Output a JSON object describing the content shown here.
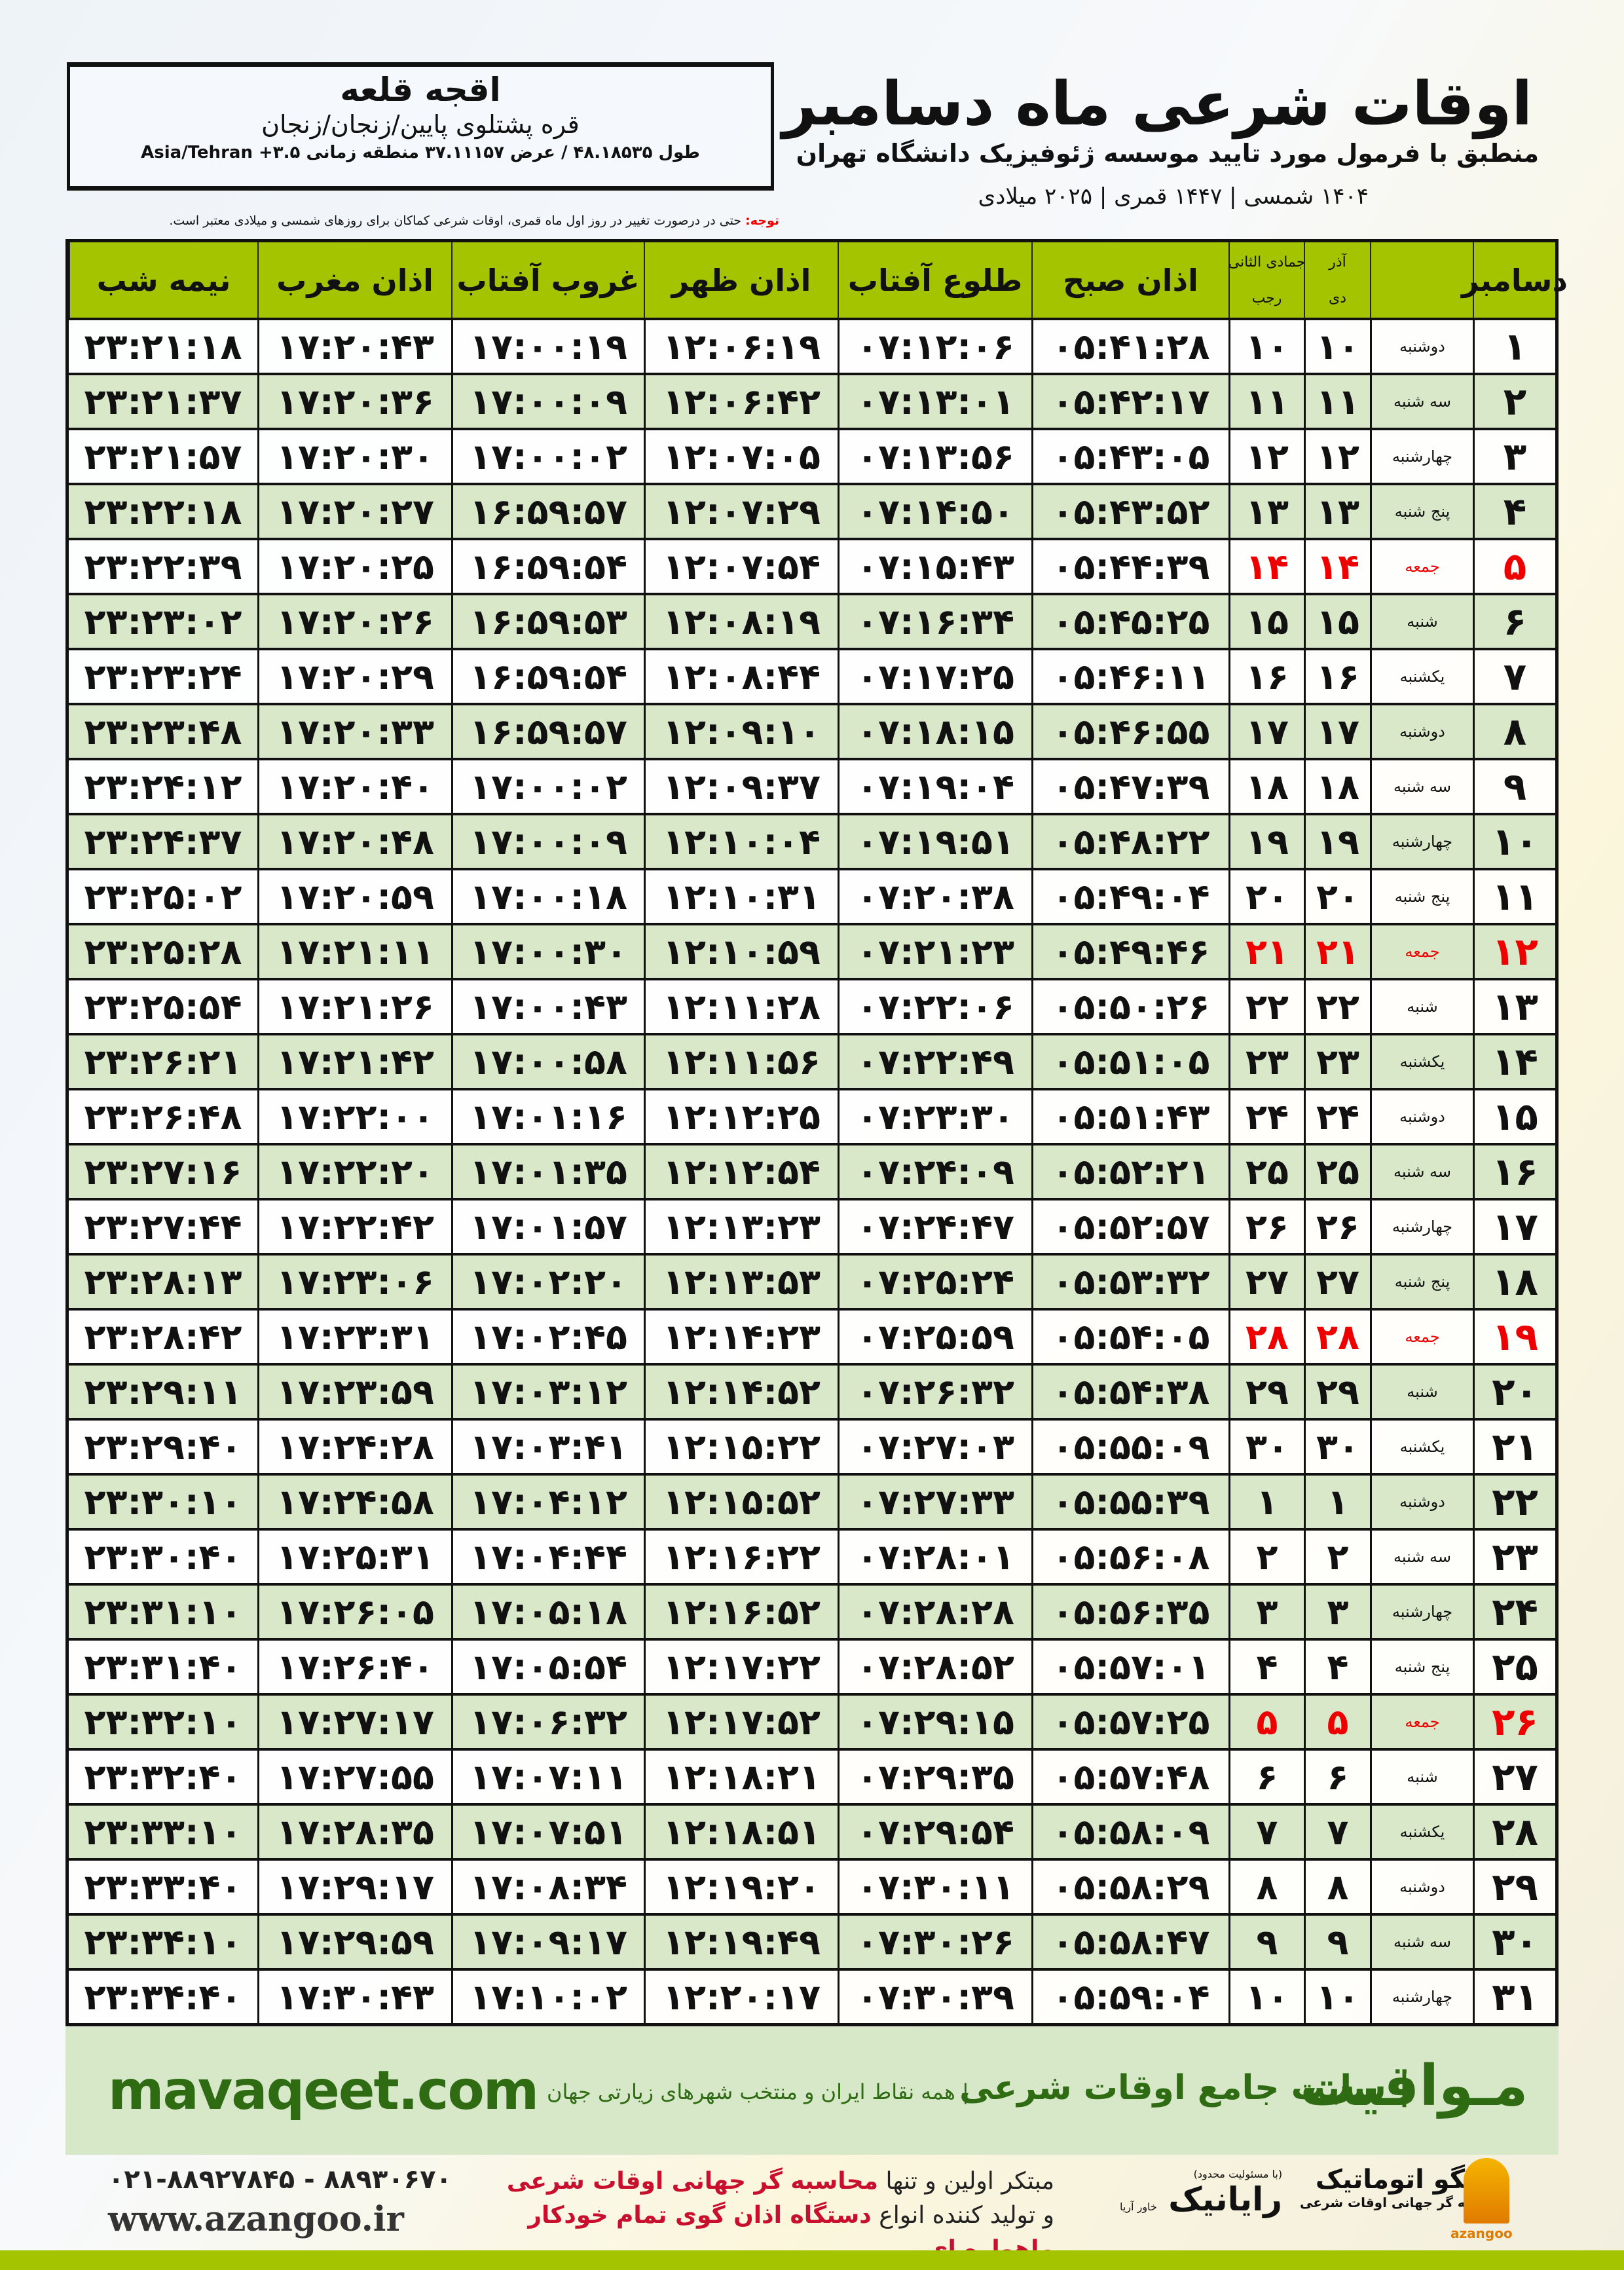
{
  "location": {
    "name": "اقجه قلعه",
    "path": "قره پشتلوی پایین/زنجان/زنجان",
    "coords": "طول ۴۸.۱۸۵۳۵ / عرض ۳۷.۱۱۱۵۷ منطقه زمانی ۳.۵+ Asia/Tehran"
  },
  "header": {
    "title": "اوقات شرعی ماه دسامبر",
    "subtitle": "منطبق با فرمول مورد تایید موسسه ژئوفیزیک دانشگاه تهران",
    "years": "۱۴۰۴ شمسی | ۱۴۴۷ قمری | ۲۰۲۵ میلادی"
  },
  "note": {
    "label": "توجه:",
    "text": " حتی در درصورت تغییر در روز اول ماه قمری، اوقات شرعی کماکان برای روزهای شمسی و میلادی معتبر است."
  },
  "table": {
    "columns": {
      "day": "دسامبر",
      "dey_top": "آذر",
      "dey": "دی",
      "rajab_top": "جمادی الثانی",
      "rajab": "رجب",
      "fajr": "اذان صبح",
      "sunrise": "طلوع آفتاب",
      "dhuhr": "اذان ظهر",
      "sunset": "غروب آفتاب",
      "maghrib": "اذان مغرب",
      "midnight": "نیمه شب"
    },
    "holiday_weekday": "جمعه",
    "holiday_color": "#ee0000",
    "rows": [
      [
        "۱",
        "دوشنبه",
        "۱۰",
        "۱۰",
        "۰۵:۴۱:۲۸",
        "۰۷:۱۲:۰۶",
        "۱۲:۰۶:۱۹",
        "۱۷:۰۰:۱۹",
        "۱۷:۲۰:۴۳",
        "۲۳:۲۱:۱۸"
      ],
      [
        "۲",
        "سه شنبه",
        "۱۱",
        "۱۱",
        "۰۵:۴۲:۱۷",
        "۰۷:۱۳:۰۱",
        "۱۲:۰۶:۴۲",
        "۱۷:۰۰:۰۹",
        "۱۷:۲۰:۳۶",
        "۲۳:۲۱:۳۷"
      ],
      [
        "۳",
        "چهارشنبه",
        "۱۲",
        "۱۲",
        "۰۵:۴۳:۰۵",
        "۰۷:۱۳:۵۶",
        "۱۲:۰۷:۰۵",
        "۱۷:۰۰:۰۲",
        "۱۷:۲۰:۳۰",
        "۲۳:۲۱:۵۷"
      ],
      [
        "۴",
        "پنج شنبه",
        "۱۳",
        "۱۳",
        "۰۵:۴۳:۵۲",
        "۰۷:۱۴:۵۰",
        "۱۲:۰۷:۲۹",
        "۱۶:۵۹:۵۷",
        "۱۷:۲۰:۲۷",
        "۲۳:۲۲:۱۸"
      ],
      [
        "۵",
        "جمعه",
        "۱۴",
        "۱۴",
        "۰۵:۴۴:۳۹",
        "۰۷:۱۵:۴۳",
        "۱۲:۰۷:۵۴",
        "۱۶:۵۹:۵۴",
        "۱۷:۲۰:۲۵",
        "۲۳:۲۲:۳۹"
      ],
      [
        "۶",
        "شنبه",
        "۱۵",
        "۱۵",
        "۰۵:۴۵:۲۵",
        "۰۷:۱۶:۳۴",
        "۱۲:۰۸:۱۹",
        "۱۶:۵۹:۵۳",
        "۱۷:۲۰:۲۶",
        "۲۳:۲۳:۰۲"
      ],
      [
        "۷",
        "یکشنبه",
        "۱۶",
        "۱۶",
        "۰۵:۴۶:۱۱",
        "۰۷:۱۷:۲۵",
        "۱۲:۰۸:۴۴",
        "۱۶:۵۹:۵۴",
        "۱۷:۲۰:۲۹",
        "۲۳:۲۳:۲۴"
      ],
      [
        "۸",
        "دوشنبه",
        "۱۷",
        "۱۷",
        "۰۵:۴۶:۵۵",
        "۰۷:۱۸:۱۵",
        "۱۲:۰۹:۱۰",
        "۱۶:۵۹:۵۷",
        "۱۷:۲۰:۳۳",
        "۲۳:۲۳:۴۸"
      ],
      [
        "۹",
        "سه شنبه",
        "۱۸",
        "۱۸",
        "۰۵:۴۷:۳۹",
        "۰۷:۱۹:۰۴",
        "۱۲:۰۹:۳۷",
        "۱۷:۰۰:۰۲",
        "۱۷:۲۰:۴۰",
        "۲۳:۲۴:۱۲"
      ],
      [
        "۱۰",
        "چهارشنبه",
        "۱۹",
        "۱۹",
        "۰۵:۴۸:۲۲",
        "۰۷:۱۹:۵۱",
        "۱۲:۱۰:۰۴",
        "۱۷:۰۰:۰۹",
        "۱۷:۲۰:۴۸",
        "۲۳:۲۴:۳۷"
      ],
      [
        "۱۱",
        "پنج شنبه",
        "۲۰",
        "۲۰",
        "۰۵:۴۹:۰۴",
        "۰۷:۲۰:۳۸",
        "۱۲:۱۰:۳۱",
        "۱۷:۰۰:۱۸",
        "۱۷:۲۰:۵۹",
        "۲۳:۲۵:۰۲"
      ],
      [
        "۱۲",
        "جمعه",
        "۲۱",
        "۲۱",
        "۰۵:۴۹:۴۶",
        "۰۷:۲۱:۲۳",
        "۱۲:۱۰:۵۹",
        "۱۷:۰۰:۳۰",
        "۱۷:۲۱:۱۱",
        "۲۳:۲۵:۲۸"
      ],
      [
        "۱۳",
        "شنبه",
        "۲۲",
        "۲۲",
        "۰۵:۵۰:۲۶",
        "۰۷:۲۲:۰۶",
        "۱۲:۱۱:۲۸",
        "۱۷:۰۰:۴۳",
        "۱۷:۲۱:۲۶",
        "۲۳:۲۵:۵۴"
      ],
      [
        "۱۴",
        "یکشنبه",
        "۲۳",
        "۲۳",
        "۰۵:۵۱:۰۵",
        "۰۷:۲۲:۴۹",
        "۱۲:۱۱:۵۶",
        "۱۷:۰۰:۵۸",
        "۱۷:۲۱:۴۲",
        "۲۳:۲۶:۲۱"
      ],
      [
        "۱۵",
        "دوشنبه",
        "۲۴",
        "۲۴",
        "۰۵:۵۱:۴۳",
        "۰۷:۲۳:۳۰",
        "۱۲:۱۲:۲۵",
        "۱۷:۰۱:۱۶",
        "۱۷:۲۲:۰۰",
        "۲۳:۲۶:۴۸"
      ],
      [
        "۱۶",
        "سه شنبه",
        "۲۵",
        "۲۵",
        "۰۵:۵۲:۲۱",
        "۰۷:۲۴:۰۹",
        "۱۲:۱۲:۵۴",
        "۱۷:۰۱:۳۵",
        "۱۷:۲۲:۲۰",
        "۲۳:۲۷:۱۶"
      ],
      [
        "۱۷",
        "چهارشنبه",
        "۲۶",
        "۲۶",
        "۰۵:۵۲:۵۷",
        "۰۷:۲۴:۴۷",
        "۱۲:۱۳:۲۳",
        "۱۷:۰۱:۵۷",
        "۱۷:۲۲:۴۲",
        "۲۳:۲۷:۴۴"
      ],
      [
        "۱۸",
        "پنج شنبه",
        "۲۷",
        "۲۷",
        "۰۵:۵۳:۳۲",
        "۰۷:۲۵:۲۴",
        "۱۲:۱۳:۵۳",
        "۱۷:۰۲:۲۰",
        "۱۷:۲۳:۰۶",
        "۲۳:۲۸:۱۳"
      ],
      [
        "۱۹",
        "جمعه",
        "۲۸",
        "۲۸",
        "۰۵:۵۴:۰۵",
        "۰۷:۲۵:۵۹",
        "۱۲:۱۴:۲۳",
        "۱۷:۰۲:۴۵",
        "۱۷:۲۳:۳۱",
        "۲۳:۲۸:۴۲"
      ],
      [
        "۲۰",
        "شنبه",
        "۲۹",
        "۲۹",
        "۰۵:۵۴:۳۸",
        "۰۷:۲۶:۳۲",
        "۱۲:۱۴:۵۲",
        "۱۷:۰۳:۱۲",
        "۱۷:۲۳:۵۹",
        "۲۳:۲۹:۱۱"
      ],
      [
        "۲۱",
        "یکشنبه",
        "۳۰",
        "۳۰",
        "۰۵:۵۵:۰۹",
        "۰۷:۲۷:۰۳",
        "۱۲:۱۵:۲۲",
        "۱۷:۰۳:۴۱",
        "۱۷:۲۴:۲۸",
        "۲۳:۲۹:۴۰"
      ],
      [
        "۲۲",
        "دوشنبه",
        "۱",
        "۱",
        "۰۵:۵۵:۳۹",
        "۰۷:۲۷:۳۳",
        "۱۲:۱۵:۵۲",
        "۱۷:۰۴:۱۲",
        "۱۷:۲۴:۵۸",
        "۲۳:۳۰:۱۰"
      ],
      [
        "۲۳",
        "سه شنبه",
        "۲",
        "۲",
        "۰۵:۵۶:۰۸",
        "۰۷:۲۸:۰۱",
        "۱۲:۱۶:۲۲",
        "۱۷:۰۴:۴۴",
        "۱۷:۲۵:۳۱",
        "۲۳:۳۰:۴۰"
      ],
      [
        "۲۴",
        "چهارشنبه",
        "۳",
        "۳",
        "۰۵:۵۶:۳۵",
        "۰۷:۲۸:۲۸",
        "۱۲:۱۶:۵۲",
        "۱۷:۰۵:۱۸",
        "۱۷:۲۶:۰۵",
        "۲۳:۳۱:۱۰"
      ],
      [
        "۲۵",
        "پنج شنبه",
        "۴",
        "۴",
        "۰۵:۵۷:۰۱",
        "۰۷:۲۸:۵۲",
        "۱۲:۱۷:۲۲",
        "۱۷:۰۵:۵۴",
        "۱۷:۲۶:۴۰",
        "۲۳:۳۱:۴۰"
      ],
      [
        "۲۶",
        "جمعه",
        "۵",
        "۵",
        "۰۵:۵۷:۲۵",
        "۰۷:۲۹:۱۵",
        "۱۲:۱۷:۵۲",
        "۱۷:۰۶:۳۲",
        "۱۷:۲۷:۱۷",
        "۲۳:۳۲:۱۰"
      ],
      [
        "۲۷",
        "شنبه",
        "۶",
        "۶",
        "۰۵:۵۷:۴۸",
        "۰۷:۲۹:۳۵",
        "۱۲:۱۸:۲۱",
        "۱۷:۰۷:۱۱",
        "۱۷:۲۷:۵۵",
        "۲۳:۳۲:۴۰"
      ],
      [
        "۲۸",
        "یکشنبه",
        "۷",
        "۷",
        "۰۵:۵۸:۰۹",
        "۰۷:۲۹:۵۴",
        "۱۲:۱۸:۵۱",
        "۱۷:۰۷:۵۱",
        "۱۷:۲۸:۳۵",
        "۲۳:۳۳:۱۰"
      ],
      [
        "۲۹",
        "دوشنبه",
        "۸",
        "۸",
        "۰۵:۵۸:۲۹",
        "۰۷:۳۰:۱۱",
        "۱۲:۱۹:۲۰",
        "۱۷:۰۸:۳۴",
        "۱۷:۲۹:۱۷",
        "۲۳:۳۳:۴۰"
      ],
      [
        "۳۰",
        "سه شنبه",
        "۹",
        "۹",
        "۰۵:۵۸:۴۷",
        "۰۷:۳۰:۲۶",
        "۱۲:۱۹:۴۹",
        "۱۷:۰۹:۱۷",
        "۱۷:۲۹:۵۹",
        "۲۳:۳۴:۱۰"
      ],
      [
        "۳۱",
        "چهارشنبه",
        "۱۰",
        "۱۰",
        "۰۵:۵۹:۰۴",
        "۰۷:۳۰:۳۹",
        "۱۲:۲۰:۱۷",
        "۱۷:۱۰:۰۲",
        "۱۷:۳۰:۴۳",
        "۲۳:۳۴:۴۰"
      ]
    ]
  },
  "band": {
    "site": "mavaqeet.com",
    "brand": "مـواقیت",
    "slogan": "| سایت جامع اوقات شرعی",
    "tagline": "| همه نقاط ایران و منتخب شهرهای زیارتی جهان"
  },
  "footer": {
    "phone": "۰۲۱-۸۸۹۲۷۸۴۵ - ۸۸۹۳۰۶۷۰",
    "web": "www.azangoo.ir",
    "promo_1a": "مبتکر اولین و تنها ",
    "promo_1b": "محاسبه گر جهانی اوقات شرعی",
    "promo_2a": "و تولید کننده انواع ",
    "promo_2b": "دستگاه اذان گوی تمام خودکار ماهواره ای",
    "rayanik": "رایانیک",
    "rayanik_sub": "خاور آریا",
    "rayanik_top": "(با مسئولیت محدود)",
    "azangoo": "اذانگو اتوماتیک",
    "azangoo_sub": "محاسبه گر جهانی اوقات شرعی",
    "azangoo_logo": "azangoo"
  },
  "colors": {
    "header_green": "#a5c400",
    "row_green": "#d8e8c8",
    "band_green": "#d7e8c9",
    "brand_text": "#2e6b12",
    "friday_red": "#ee0000",
    "promo_red": "#c8102e"
  }
}
